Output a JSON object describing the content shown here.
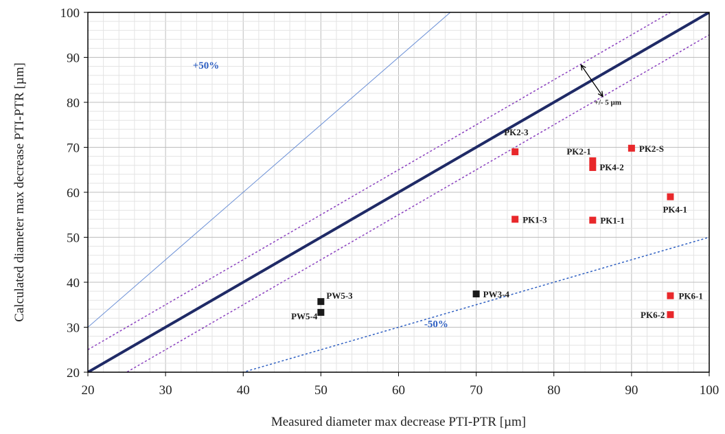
{
  "chart_data": {
    "type": "scatter",
    "xlabel": "Measured diameter max decrease PTI-PTR [µm]",
    "ylabel": "Calculated diameter max decrease PTI-PTR [µm]",
    "xlim": [
      20,
      100
    ],
    "ylim": [
      20,
      100
    ],
    "xticks": [
      "20",
      "30",
      "40",
      "50",
      "60",
      "70",
      "80",
      "90",
      "100"
    ],
    "yticks": [
      "20",
      "30",
      "40",
      "50",
      "60",
      "70",
      "80",
      "90",
      "100"
    ],
    "grid": true,
    "series": [
      {
        "color": "#e8282b",
        "points": [
          {
            "label": "PK2-3",
            "x": 75,
            "y": 69
          },
          {
            "label": "PK2-1",
            "x": 85,
            "y": 67
          },
          {
            "label": "PK4-2",
            "x": 85,
            "y": 65.5
          },
          {
            "label": "PK2-S",
            "x": 90,
            "y": 69.8
          },
          {
            "label": "PK4-1",
            "x": 95,
            "y": 59
          },
          {
            "label": "PK1-3",
            "x": 75,
            "y": 54
          },
          {
            "label": "PK1-1",
            "x": 85,
            "y": 53.8
          },
          {
            "label": "PK6-1",
            "x": 95,
            "y": 37
          },
          {
            "label": "PK6-2",
            "x": 95,
            "y": 32.8
          }
        ]
      },
      {
        "color": "#1a1a1a",
        "points": [
          {
            "label": "PW5-3",
            "x": 50,
            "y": 35.7
          },
          {
            "label": "PW5-4",
            "x": 50,
            "y": 33.3
          },
          {
            "label": "PW3-4",
            "x": 70,
            "y": 37.4
          }
        ]
      }
    ],
    "reference_lines": [
      {
        "kind": "identity",
        "slope": 1.0,
        "offset": 0,
        "color": "#1f2a66",
        "style": "solid-thick"
      },
      {
        "kind": "plus5",
        "slope": 1.0,
        "offset": 5,
        "color": "#8a3fbf",
        "style": "dotted"
      },
      {
        "kind": "minus5",
        "slope": 1.0,
        "offset": -5,
        "color": "#8a3fbf",
        "style": "dotted"
      },
      {
        "kind": "plus50pct",
        "slope": 1.5,
        "offset": 0,
        "color": "#6a8fd6",
        "style": "solid-thin"
      },
      {
        "kind": "minus50pct",
        "slope": 0.5,
        "offset": 0,
        "color": "#2e5fc2",
        "style": "dotted"
      }
    ],
    "annotations": {
      "plus50": "+50%",
      "minus50": "-50%",
      "band": "+/- 5 µm"
    }
  }
}
